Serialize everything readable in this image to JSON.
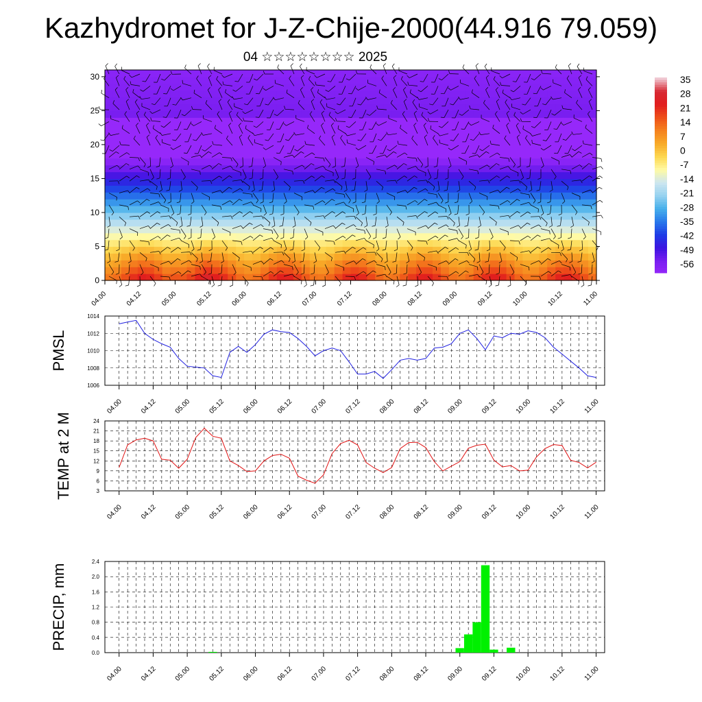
{
  "header": {
    "title": "Kazhydromet for J-Z-Chije-2000(44.916 79.059)",
    "subtitle": "04 ☆☆☆☆☆☆☆☆ 2025"
  },
  "time_ticks": [
    "04.00",
    "04.12",
    "05.00",
    "05.12",
    "06.00",
    "06.12",
    "07.00",
    "07.12",
    "08.00",
    "08.12",
    "09.00",
    "09.12",
    "10.00",
    "10.12",
    "11.00"
  ],
  "colors": {
    "pmsl_line": "#1f1fe0",
    "temp_line": "#e01010",
    "precip_bar": "#00f000",
    "wind_barb": "#000000",
    "colorbar": [
      "#f2c8d2",
      "#e8202a",
      "#f0501a",
      "#f7941e",
      "#fdd24a",
      "#fff8a0",
      "#bfe0f0",
      "#4fb8ea",
      "#2070e8",
      "#3010e0",
      "#7020f0",
      "#9040f8"
    ]
  },
  "chart_data": [
    {
      "type": "heatmap",
      "name_panel": "cross-section",
      "x": [
        "04.00",
        "04.12",
        "05.00",
        "05.12",
        "06.00",
        "06.12",
        "07.00",
        "07.12",
        "08.00",
        "08.12",
        "09.00",
        "09.12",
        "10.00",
        "10.12",
        "11.00"
      ],
      "yticks": [
        0,
        5,
        10,
        15,
        20,
        25,
        30
      ],
      "ylim": [
        0,
        31
      ],
      "colorbar_labels": [
        "35",
        "28",
        "21",
        "14",
        "7",
        "0",
        "-7",
        "-14",
        "-21",
        "-28",
        "-35",
        "-42",
        "-49",
        "-56"
      ],
      "colorbar_range": [
        -63,
        42
      ],
      "overlay": "wind barbs"
    },
    {
      "type": "line",
      "ylabel": "PMSL",
      "x": [
        "04.00",
        "04.03",
        "04.06",
        "04.09",
        "04.12",
        "04.15",
        "04.18",
        "04.21",
        "05.00",
        "05.03",
        "05.06",
        "05.09",
        "05.12",
        "05.15",
        "05.18",
        "05.21",
        "06.00",
        "06.03",
        "06.06",
        "06.09",
        "06.12",
        "06.15",
        "06.18",
        "06.21",
        "07.00",
        "07.03",
        "07.06",
        "07.09",
        "07.12",
        "07.15",
        "07.18",
        "07.21",
        "08.00",
        "08.03",
        "08.06",
        "08.09",
        "08.12",
        "08.15",
        "08.18",
        "08.21",
        "09.00",
        "09.03",
        "09.06",
        "09.09",
        "09.12",
        "09.15",
        "09.18",
        "09.21",
        "10.00",
        "10.03",
        "10.06",
        "10.09",
        "10.12",
        "10.15",
        "10.18",
        "10.21",
        "11.00"
      ],
      "values": [
        1013.1,
        1013.3,
        1013.5,
        1012.0,
        1011.3,
        1010.8,
        1010.4,
        1009.1,
        1008.2,
        1008.1,
        1008.0,
        1007.1,
        1006.9,
        1009.8,
        1010.5,
        1009.8,
        1010.7,
        1011.9,
        1012.4,
        1012.2,
        1012.1,
        1011.4,
        1010.5,
        1009.4,
        1010.0,
        1010.3,
        1010.0,
        1008.7,
        1007.3,
        1007.3,
        1007.6,
        1006.8,
        1007.8,
        1008.9,
        1009.1,
        1008.9,
        1009.1,
        1010.3,
        1010.4,
        1010.8,
        1012.0,
        1012.4,
        1011.4,
        1010.1,
        1011.7,
        1011.5,
        1012.0,
        1011.9,
        1012.3,
        1012.1,
        1011.5,
        1010.4,
        1009.6,
        1008.8,
        1008.0,
        1007.1,
        1006.9
      ],
      "yticks": [
        1006,
        1008,
        1010,
        1012,
        1014
      ],
      "ylim": [
        1006,
        1014
      ]
    },
    {
      "type": "line",
      "ylabel": "TEMP at 2 M",
      "x": [
        "04.00",
        "04.03",
        "04.06",
        "04.09",
        "04.12",
        "04.15",
        "04.18",
        "04.21",
        "05.00",
        "05.03",
        "05.06",
        "05.09",
        "05.12",
        "05.15",
        "05.18",
        "05.21",
        "06.00",
        "06.03",
        "06.06",
        "06.09",
        "06.12",
        "06.15",
        "06.18",
        "06.21",
        "07.00",
        "07.03",
        "07.06",
        "07.09",
        "07.12",
        "07.15",
        "07.18",
        "07.21",
        "08.00",
        "08.03",
        "08.06",
        "08.09",
        "08.12",
        "08.15",
        "08.18",
        "08.21",
        "09.00",
        "09.03",
        "09.06",
        "09.09",
        "09.12",
        "09.15",
        "09.18",
        "09.21",
        "10.00",
        "10.03",
        "10.06",
        "10.09",
        "10.12",
        "10.15",
        "10.18",
        "10.21",
        "11.00"
      ],
      "values": [
        10.0,
        16.8,
        18.3,
        18.8,
        18.0,
        12.5,
        12.2,
        9.8,
        12.5,
        19.0,
        21.8,
        19.4,
        18.8,
        12.0,
        10.6,
        8.8,
        9.0,
        12.0,
        13.6,
        14.0,
        12.8,
        7.4,
        6.2,
        5.3,
        7.8,
        14.2,
        17.2,
        18.2,
        16.8,
        11.5,
        9.8,
        8.5,
        10.0,
        15.7,
        17.5,
        17.6,
        16.0,
        11.8,
        9.0,
        10.4,
        11.8,
        15.8,
        16.7,
        17.0,
        12.2,
        10.2,
        10.6,
        9.0,
        9.2,
        13.2,
        15.7,
        16.9,
        16.6,
        12.2,
        11.5,
        9.9,
        11.6
      ],
      "yticks": [
        3,
        6,
        9,
        12,
        15,
        18,
        21,
        24
      ],
      "ylim": [
        3,
        24
      ]
    },
    {
      "type": "bar",
      "ylabel": "PRECIP, mm",
      "x": [
        "05.09",
        "09.00",
        "09.03",
        "09.06",
        "09.09",
        "09.12",
        "09.18"
      ],
      "values": [
        0.02,
        0.12,
        0.48,
        0.8,
        2.3,
        0.08,
        0.13
      ],
      "yticks": [
        "0.0",
        "0.4",
        "0.8",
        "1.2",
        "1.6",
        "2.0",
        "2.4"
      ],
      "ylim": [
        0,
        2.4
      ]
    }
  ]
}
